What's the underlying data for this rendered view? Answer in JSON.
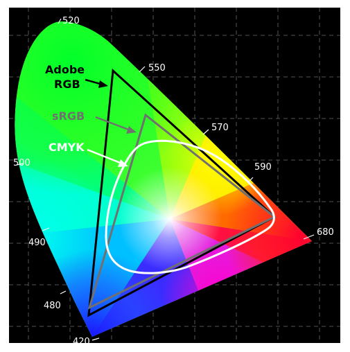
{
  "diagram": {
    "wavelength_labels": {
      "w520": "520",
      "w550": "550",
      "w570": "570",
      "w590": "590",
      "w680": "680",
      "w500": "500",
      "w490": "490",
      "w480": "480",
      "w420": "420"
    },
    "gamuts": {
      "adobe_rgb": {
        "label_line1": "Adobe",
        "label_line2": "RGB",
        "color": "#000000"
      },
      "srgb": {
        "label": "sRGB",
        "color": "#707070"
      },
      "cmyk": {
        "label": "CMYK",
        "color": "#ffffff"
      }
    },
    "colors": {
      "background": "#000000",
      "grid": "#555555",
      "tick": "#ffffff"
    }
  }
}
